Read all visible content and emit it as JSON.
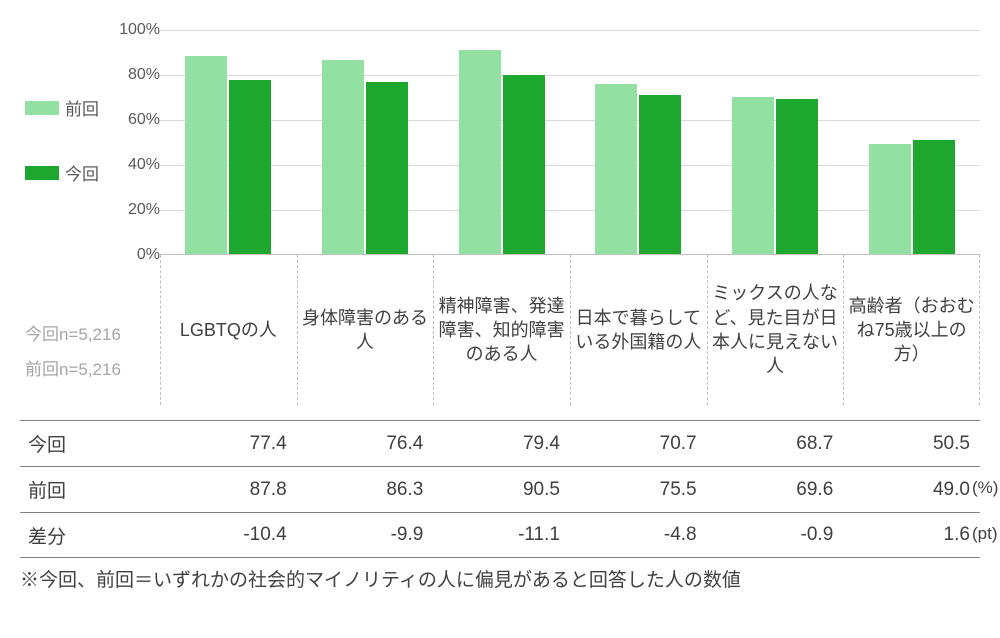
{
  "chart": {
    "type": "bar",
    "ylim": [
      0,
      100
    ],
    "ytick_step": 20,
    "yticks": [
      0,
      20,
      40,
      60,
      80,
      100
    ],
    "grid_color": "#d9d9d9",
    "background_color": "#ffffff",
    "series": [
      {
        "name": "前回",
        "color": "#92e1a3",
        "values": [
          87.8,
          86.3,
          90.5,
          75.5,
          69.6,
          49.0
        ]
      },
      {
        "name": "今回",
        "color": "#1ea82f",
        "values": [
          77.4,
          76.4,
          79.4,
          70.7,
          68.7,
          50.5
        ]
      }
    ],
    "categories": [
      "LGBTQの人",
      "身体障害のある人",
      "精神障害、発達障害、知的障害のある人",
      "日本で暮らしている外国籍の人",
      "ミックスの人など、見た目が日本人に見えない人",
      "高齢者（おおむね75歳以上の方）"
    ]
  },
  "legend": {
    "items": [
      {
        "label": "前回",
        "color": "#92e1a3"
      },
      {
        "label": "今回",
        "color": "#1ea82f"
      }
    ]
  },
  "sample_sizes": [
    "今回n=5,216",
    "前回n=5,216"
  ],
  "table": {
    "rows": [
      {
        "label": "今回",
        "values": [
          "77.4",
          "76.4",
          "79.4",
          "70.7",
          "68.7",
          "50.5"
        ],
        "unit": ""
      },
      {
        "label": "前回",
        "values": [
          "87.8",
          "86.3",
          "90.5",
          "75.5",
          "69.6",
          "49.0"
        ],
        "unit": "(%)"
      },
      {
        "label": "差分",
        "values": [
          "-10.4",
          "-9.9",
          "-11.1",
          "-4.8",
          "-0.9",
          "1.6"
        ],
        "unit": "(pt)"
      }
    ]
  },
  "footnote": "※今回、前回＝いずれかの社会的マイノリティの人に偏見があると回答した人の数値"
}
